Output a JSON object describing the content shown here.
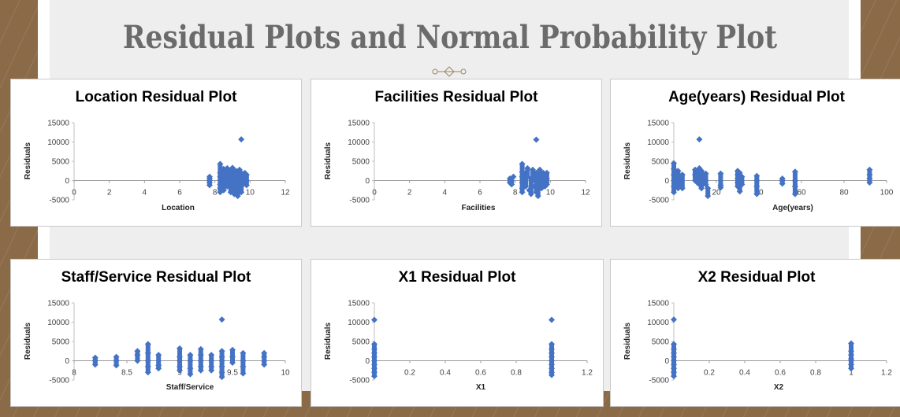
{
  "slide": {
    "title": "Residual Plots and Normal Probability Plot",
    "ornament": "diamond-divider-icon",
    "colors": {
      "marker": "#4472c4",
      "title": "#6b6b6b",
      "background": "#8b6a48",
      "panel": "#eeeeee"
    }
  },
  "chart_data": [
    {
      "type": "scatter",
      "title": "Location  Residual Plot",
      "xlabel": "Location",
      "ylabel": "Residuals",
      "xlim": [
        0,
        12
      ],
      "ylim": [
        -5000,
        15000
      ],
      "xticks": [
        "0",
        "2",
        "4",
        "6",
        "8",
        "10",
        "12"
      ],
      "yticks": [
        "15000",
        "10000",
        "5000",
        "0",
        "-5000"
      ],
      "grid": false,
      "points": [
        [
          7.7,
          1000
        ],
        [
          7.7,
          500
        ],
        [
          7.7,
          0
        ],
        [
          7.7,
          -500
        ],
        [
          7.7,
          -1200
        ],
        [
          8.3,
          4300
        ],
        [
          8.3,
          2000
        ],
        [
          8.3,
          1000
        ],
        [
          8.3,
          0
        ],
        [
          8.3,
          -1000
        ],
        [
          8.3,
          -2000
        ],
        [
          8.3,
          -3000
        ],
        [
          8.5,
          3000
        ],
        [
          8.5,
          1500
        ],
        [
          8.5,
          -500
        ],
        [
          8.5,
          -2500
        ],
        [
          8.7,
          3200
        ],
        [
          8.7,
          1000
        ],
        [
          8.7,
          -1500
        ],
        [
          8.9,
          2500
        ],
        [
          8.9,
          500
        ],
        [
          8.9,
          -1000
        ],
        [
          8.9,
          -3000
        ],
        [
          9.0,
          3300
        ],
        [
          9.0,
          2000
        ],
        [
          9.0,
          0
        ],
        [
          9.0,
          -2000
        ],
        [
          9.1,
          1500
        ],
        [
          9.1,
          -3500
        ],
        [
          9.2,
          2500
        ],
        [
          9.2,
          -500
        ],
        [
          9.3,
          -4000
        ],
        [
          9.3,
          1000
        ],
        [
          9.4,
          2800
        ],
        [
          9.4,
          -1500
        ],
        [
          9.5,
          10700
        ],
        [
          9.5,
          2000
        ],
        [
          9.5,
          0
        ],
        [
          9.5,
          -3000
        ],
        [
          9.6,
          1500
        ],
        [
          9.6,
          -1000
        ],
        [
          9.7,
          2000
        ],
        [
          9.7,
          -500
        ],
        [
          9.8,
          1500
        ],
        [
          9.8,
          0
        ],
        [
          9.8,
          -1200
        ]
      ]
    },
    {
      "type": "scatter",
      "title": "Facilities  Residual Plot",
      "xlabel": "Facilities",
      "ylabel": "Residuals",
      "xlim": [
        0,
        12
      ],
      "ylim": [
        -5000,
        15000
      ],
      "xticks": [
        "0",
        "2",
        "4",
        "6",
        "8",
        "10",
        "12"
      ],
      "yticks": [
        "15000",
        "10000",
        "5000",
        "0",
        "-5000"
      ],
      "grid": false,
      "points": [
        [
          7.7,
          500
        ],
        [
          7.7,
          -500
        ],
        [
          7.8,
          0
        ],
        [
          7.9,
          1000
        ],
        [
          7.8,
          -1000
        ],
        [
          8.4,
          4300
        ],
        [
          8.4,
          2200
        ],
        [
          8.4,
          1000
        ],
        [
          8.4,
          -500
        ],
        [
          8.4,
          -2000
        ],
        [
          8.4,
          -3000
        ],
        [
          8.6,
          2000
        ],
        [
          8.6,
          -1500
        ],
        [
          8.7,
          3200
        ],
        [
          8.7,
          1000
        ],
        [
          8.8,
          -2500
        ],
        [
          8.9,
          500
        ],
        [
          8.9,
          -3500
        ],
        [
          9.0,
          2800
        ],
        [
          9.0,
          0
        ],
        [
          9.1,
          -1500
        ],
        [
          9.2,
          10600
        ],
        [
          9.2,
          2000
        ],
        [
          9.2,
          -3000
        ],
        [
          9.3,
          1000
        ],
        [
          9.3,
          -4000
        ],
        [
          9.4,
          2800
        ],
        [
          9.4,
          -500
        ],
        [
          9.5,
          1500
        ],
        [
          9.5,
          -2000
        ],
        [
          9.6,
          2000
        ],
        [
          9.6,
          0
        ],
        [
          9.7,
          1000
        ],
        [
          9.7,
          -1500
        ],
        [
          9.8,
          2000
        ],
        [
          9.8,
          500
        ],
        [
          9.8,
          -1000
        ]
      ]
    },
    {
      "type": "scatter",
      "title": "Age(years)  Residual Plot",
      "xlabel": "Age(years)",
      "ylabel": "Residuals",
      "xlim": [
        0,
        100
      ],
      "ylim": [
        -5000,
        15000
      ],
      "xticks": [
        "0",
        "20",
        "40",
        "60",
        "80",
        "100"
      ],
      "yticks": [
        "15000",
        "10000",
        "5000",
        "0",
        "-5000"
      ],
      "grid": false,
      "points": [
        [
          0,
          4500
        ],
        [
          0,
          3000
        ],
        [
          0,
          1500
        ],
        [
          0,
          0
        ],
        [
          0,
          -1500
        ],
        [
          0,
          -3000
        ],
        [
          1,
          2000
        ],
        [
          1,
          -500
        ],
        [
          2,
          2500
        ],
        [
          2,
          1000
        ],
        [
          2,
          -2000
        ],
        [
          3,
          500
        ],
        [
          3,
          -1000
        ],
        [
          4,
          1500
        ],
        [
          4,
          -2000
        ],
        [
          10,
          2800
        ],
        [
          10,
          1500
        ],
        [
          10,
          0
        ],
        [
          11,
          2000
        ],
        [
          11,
          -500
        ],
        [
          12,
          10700
        ],
        [
          12,
          3200
        ],
        [
          12,
          1500
        ],
        [
          12,
          -1000
        ],
        [
          13,
          2500
        ],
        [
          13,
          -2000
        ],
        [
          15,
          1800
        ],
        [
          15,
          0
        ],
        [
          15,
          -1000
        ],
        [
          16,
          -2000
        ],
        [
          16,
          -4000
        ],
        [
          22,
          1800
        ],
        [
          22,
          -1200
        ],
        [
          22,
          -1800
        ],
        [
          30,
          2500
        ],
        [
          30,
          1500
        ],
        [
          30,
          500
        ],
        [
          30,
          -500
        ],
        [
          30,
          -1500
        ],
        [
          31,
          2000
        ],
        [
          31,
          -2800
        ],
        [
          32,
          1000
        ],
        [
          32,
          -1000
        ],
        [
          39,
          1200
        ],
        [
          39,
          0
        ],
        [
          39,
          -1500
        ],
        [
          39,
          -3500
        ],
        [
          51,
          500
        ],
        [
          51,
          0
        ],
        [
          51,
          -800
        ],
        [
          57,
          2300
        ],
        [
          57,
          0
        ],
        [
          57,
          -1500
        ],
        [
          57,
          -3500
        ],
        [
          92,
          2800
        ],
        [
          92,
          1500
        ],
        [
          92,
          500
        ],
        [
          92,
          -500
        ]
      ]
    },
    {
      "type": "scatter",
      "title": "Staff/Service  Residual Plot",
      "xlabel": "Staff/Service",
      "ylabel": "Residuals",
      "xlim": [
        8,
        10
      ],
      "ylim": [
        -5000,
        15000
      ],
      "xticks": [
        "8",
        "8.5",
        "9",
        "9.5",
        "10"
      ],
      "yticks": [
        "15000",
        "10000",
        "5000",
        "0",
        "-5000"
      ],
      "grid": false,
      "points": [
        [
          8.2,
          800
        ],
        [
          8.2,
          0
        ],
        [
          8.2,
          -1000
        ],
        [
          8.4,
          1000
        ],
        [
          8.4,
          0
        ],
        [
          8.4,
          -1200
        ],
        [
          8.6,
          2500
        ],
        [
          8.6,
          1500
        ],
        [
          8.6,
          0
        ],
        [
          8.7,
          4300
        ],
        [
          8.7,
          2000
        ],
        [
          8.7,
          0
        ],
        [
          8.7,
          -1500
        ],
        [
          8.7,
          -3000
        ],
        [
          8.8,
          1500
        ],
        [
          8.8,
          -1200
        ],
        [
          8.8,
          -2000
        ],
        [
          9.0,
          3200
        ],
        [
          9.0,
          1000
        ],
        [
          9.0,
          0
        ],
        [
          9.0,
          -1500
        ],
        [
          9.0,
          -2500
        ],
        [
          9.1,
          1500
        ],
        [
          9.1,
          0
        ],
        [
          9.1,
          -2000
        ],
        [
          9.1,
          -3500
        ],
        [
          9.2,
          3000
        ],
        [
          9.2,
          1500
        ],
        [
          9.2,
          0
        ],
        [
          9.2,
          -1500
        ],
        [
          9.2,
          -2500
        ],
        [
          9.3,
          1500
        ],
        [
          9.3,
          0
        ],
        [
          9.3,
          -1500
        ],
        [
          9.3,
          -2500
        ],
        [
          9.4,
          10700
        ],
        [
          9.4,
          2500
        ],
        [
          9.4,
          1000
        ],
        [
          9.4,
          0
        ],
        [
          9.4,
          -1500
        ],
        [
          9.4,
          -3000
        ],
        [
          9.4,
          -4200
        ],
        [
          9.5,
          2800
        ],
        [
          9.5,
          1000
        ],
        [
          9.5,
          -500
        ],
        [
          9.6,
          2000
        ],
        [
          9.6,
          0
        ],
        [
          9.6,
          -1500
        ],
        [
          9.6,
          -3300
        ],
        [
          9.8,
          2000
        ],
        [
          9.8,
          1000
        ],
        [
          9.8,
          0
        ],
        [
          9.8,
          -1000
        ]
      ]
    },
    {
      "type": "scatter",
      "title": "X1  Residual Plot",
      "xlabel": "X1",
      "ylabel": "Residuals",
      "xlim": [
        0,
        1.2
      ],
      "ylim": [
        -5000,
        15000
      ],
      "xticks": [
        "0",
        "0.2",
        "0.4",
        "0.6",
        "0.8",
        "1",
        "1.2"
      ],
      "yticks": [
        "15000",
        "10000",
        "5000",
        "0",
        "-5000"
      ],
      "grid": false,
      "points": [
        [
          0,
          10600
        ],
        [
          0,
          4300
        ],
        [
          0,
          3000
        ],
        [
          0,
          2000
        ],
        [
          0,
          1000
        ],
        [
          0,
          0
        ],
        [
          0,
          -1000
        ],
        [
          0,
          -2000
        ],
        [
          0,
          -3000
        ],
        [
          0,
          -4000
        ],
        [
          1,
          10600
        ],
        [
          1,
          4300
        ],
        [
          1,
          3000
        ],
        [
          1,
          2000
        ],
        [
          1,
          1000
        ],
        [
          1,
          0
        ],
        [
          1,
          -1000
        ],
        [
          1,
          -2000
        ],
        [
          1,
          -3000
        ],
        [
          1,
          -3700
        ]
      ]
    },
    {
      "type": "scatter",
      "title": "X2  Residual Plot",
      "xlabel": "X2",
      "ylabel": "Residuals",
      "xlim": [
        0,
        1.2
      ],
      "ylim": [
        -5000,
        15000
      ],
      "xticks": [
        "0",
        "0.2",
        "0.4",
        "0.6",
        "0.8",
        "1",
        "1.2"
      ],
      "yticks": [
        "15000",
        "10000",
        "5000",
        "0",
        "-5000"
      ],
      "grid": false,
      "points": [
        [
          0,
          10700
        ],
        [
          0,
          4300
        ],
        [
          0,
          3000
        ],
        [
          0,
          2000
        ],
        [
          0,
          1000
        ],
        [
          0,
          0
        ],
        [
          0,
          -1000
        ],
        [
          0,
          -2000
        ],
        [
          0,
          -3000
        ],
        [
          0,
          -4000
        ],
        [
          1,
          4500
        ],
        [
          1,
          2500
        ],
        [
          1,
          1500
        ],
        [
          1,
          500
        ],
        [
          1,
          0
        ],
        [
          1,
          -1000
        ],
        [
          1,
          -2000
        ]
      ]
    }
  ]
}
